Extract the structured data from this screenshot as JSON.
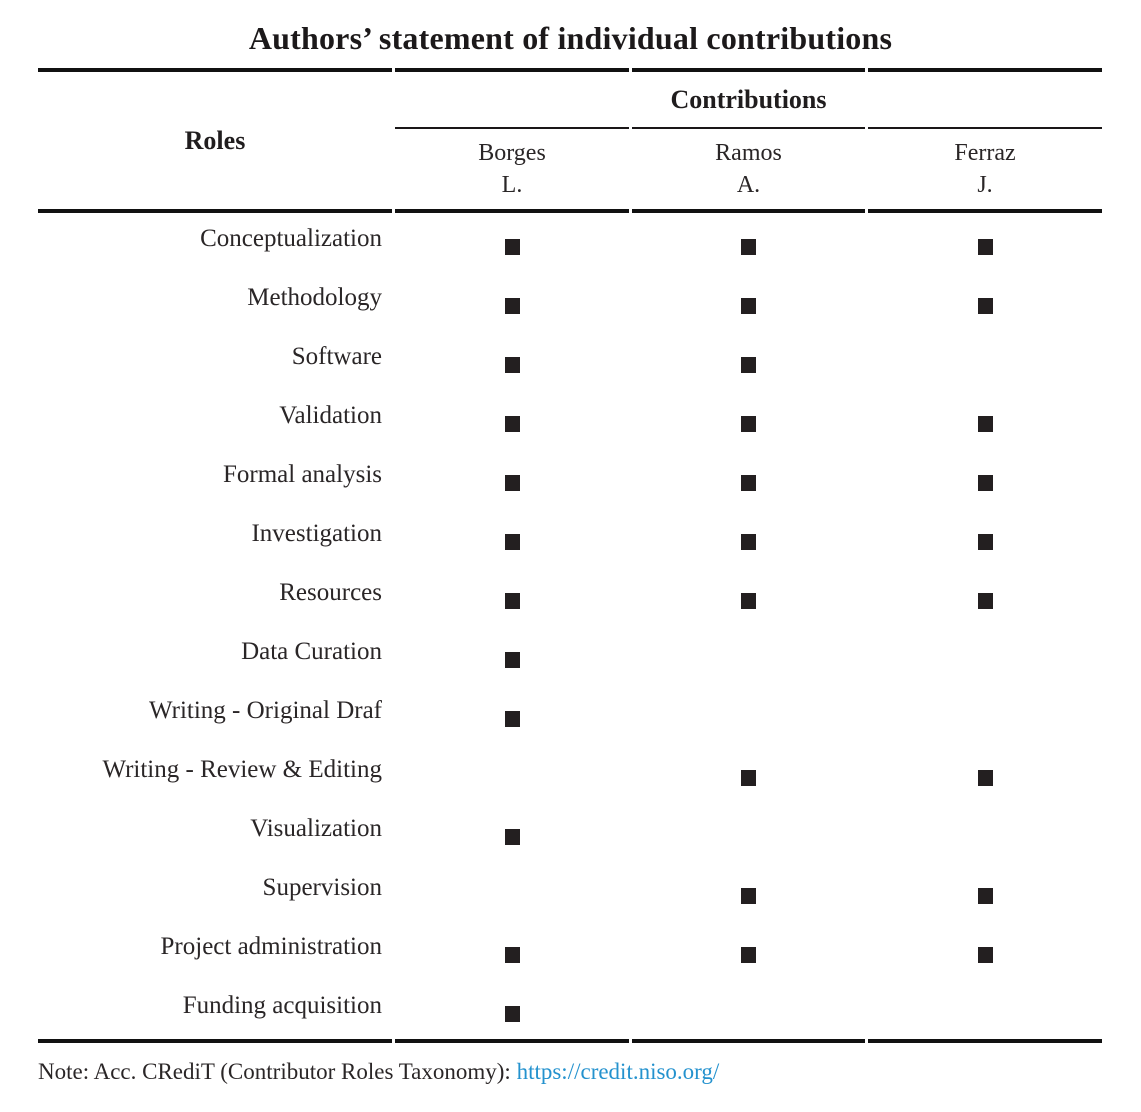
{
  "title": "Authors’ statement of individual contributions",
  "table": {
    "roles_header": "Roles",
    "contributions_header": "Contributions",
    "authors": [
      {
        "surname": "Borges",
        "initial": "L."
      },
      {
        "surname": "Ramos",
        "initial": "A."
      },
      {
        "surname": "Ferraz",
        "initial": "J."
      }
    ],
    "rows": [
      {
        "role": "Conceptualization",
        "marks": [
          1,
          1,
          1
        ]
      },
      {
        "role": "Methodology",
        "marks": [
          1,
          1,
          1
        ]
      },
      {
        "role": "Software",
        "marks": [
          1,
          1,
          0
        ]
      },
      {
        "role": "Validation",
        "marks": [
          1,
          1,
          1
        ]
      },
      {
        "role": "Formal analysis",
        "marks": [
          1,
          1,
          1
        ]
      },
      {
        "role": "Investigation",
        "marks": [
          1,
          1,
          1
        ]
      },
      {
        "role": "Resources",
        "marks": [
          1,
          1,
          1
        ]
      },
      {
        "role": "Data Curation",
        "marks": [
          1,
          0,
          0
        ]
      },
      {
        "role": "Writing - Original Draf",
        "marks": [
          1,
          0,
          0
        ]
      },
      {
        "role": "Writing - Review & Editing",
        "marks": [
          0,
          1,
          1
        ]
      },
      {
        "role": "Visualization",
        "marks": [
          1,
          0,
          0
        ]
      },
      {
        "role": "Supervision",
        "marks": [
          0,
          1,
          1
        ]
      },
      {
        "role": "Project administration",
        "marks": [
          1,
          1,
          1
        ]
      },
      {
        "role": "Funding acquisition",
        "marks": [
          1,
          0,
          0
        ]
      }
    ]
  },
  "footnote": {
    "prefix": "Note: Acc. CRediT (Contributor Roles Taxonomy): ",
    "link": "https://credit.niso.org/"
  },
  "colors": {
    "square": "#231f20",
    "link": "#2492ce",
    "rule": "#111111"
  }
}
